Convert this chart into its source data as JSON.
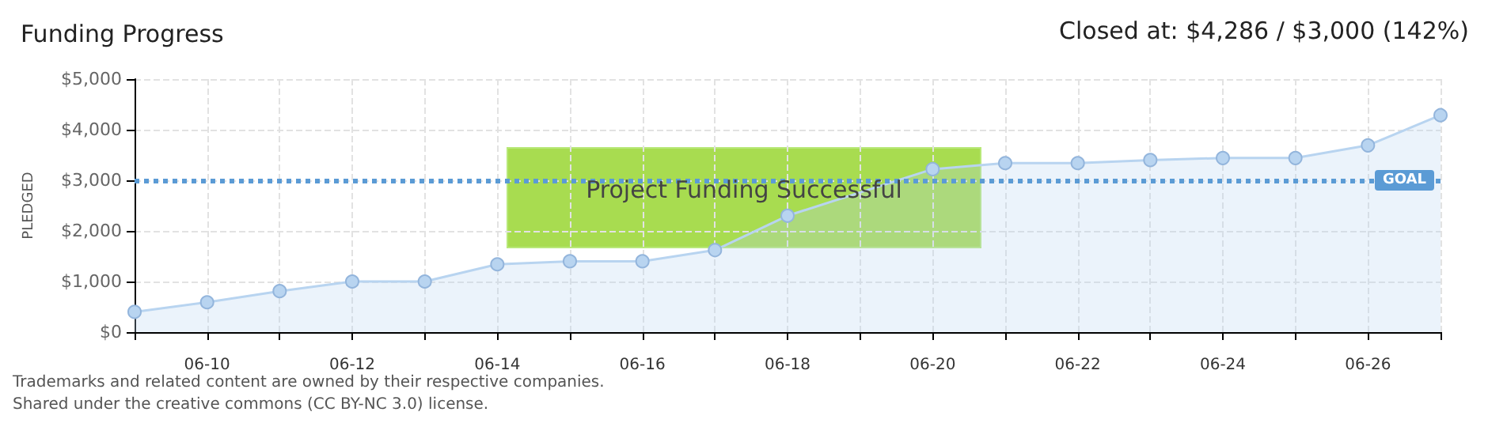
{
  "chart_data": {
    "type": "area",
    "title": "Funding Progress",
    "ylabel": "PLEDGED",
    "annotations": [
      "Closed at: $4,286 / $3,000 (142%)",
      "Project Funding Successful",
      "Trademarks and related content are owned by their respective companies.",
      "Shared under the creative commons (CC BY-NC 3.0) license."
    ],
    "categories": [
      null,
      "06-10",
      null,
      "06-12",
      null,
      "06-14",
      null,
      "06-16",
      null,
      "06-18",
      null,
      "06-20",
      null,
      "06-22",
      null,
      "06-24",
      null,
      "06-26",
      null
    ],
    "series": [
      {
        "color": "#b8d4f0",
        "values": [
          400,
          590,
          810,
          1000,
          1000,
          1340,
          1400,
          1400,
          1620,
          2300,
          null,
          3220,
          3340,
          3340,
          3400,
          3440,
          3440,
          3690,
          4286
        ]
      }
    ],
    "ylim": [
      0,
      5000
    ],
    "yticks": [
      {
        "value": 0,
        "label": "$0"
      },
      {
        "value": 1000,
        "label": "$1,000"
      },
      {
        "value": 2000,
        "label": "$2,000"
      },
      {
        "value": 3000,
        "label": "$3,000"
      },
      {
        "value": 4000,
        "label": "$4,000"
      },
      {
        "value": 5000,
        "label": "$5,000"
      }
    ],
    "ref_lines": [
      {
        "axis": "y",
        "value": 3000,
        "label": "GOAL",
        "color": "#5b9bd5",
        "line_style": "dotted"
      }
    ],
    "grid": true,
    "marker": "circle"
  }
}
